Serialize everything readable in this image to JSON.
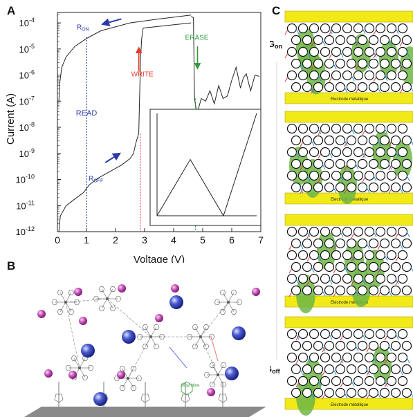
{
  "panel_labels": {
    "a": "A",
    "b": "B",
    "c": "C"
  },
  "chart_data": {
    "type": "line",
    "ylabel": "Current (A)",
    "xlabel": "Voltage (V)",
    "xlim": [
      0,
      7
    ],
    "ylim_log10": [
      -12,
      -3.6
    ],
    "x_ticks": [
      "0",
      "1",
      "2",
      "3",
      "4",
      "5",
      "6",
      "7"
    ],
    "y_ticks": [
      {
        "base": "10",
        "exp": "-4"
      },
      {
        "base": "10",
        "exp": "-5"
      },
      {
        "base": "10",
        "exp": "-6"
      },
      {
        "base": "10",
        "exp": "-7"
      },
      {
        "base": "10",
        "exp": "-8"
      },
      {
        "base": "10",
        "exp": "-9"
      },
      {
        "base": "10",
        "exp": "-10"
      },
      {
        "base": "10",
        "exp": "-11"
      },
      {
        "base": "10",
        "exp": "-12"
      }
    ],
    "annotations": {
      "r_on": {
        "main": "R",
        "sub": "ON"
      },
      "r_off": {
        "main": "R",
        "sub": "OFF"
      },
      "read": "READ",
      "write": "WRITE",
      "erase": "ERASE"
    },
    "colors": {
      "read": "#2b3aa8",
      "write": "#e53a2a",
      "erase": "#2e9a3c",
      "curve": "#222222"
    },
    "read_voltage": 1.0,
    "write_voltage": 2.85,
    "erase_voltage": 4.75,
    "off_branch": [
      [
        0.05,
        -12
      ],
      [
        0.1,
        -11.4
      ],
      [
        0.3,
        -11.0
      ],
      [
        0.6,
        -10.75
      ],
      [
        0.9,
        -10.5
      ],
      [
        1.1,
        -10.2
      ],
      [
        1.4,
        -9.95
      ],
      [
        1.8,
        -9.7
      ],
      [
        2.2,
        -9.45
      ],
      [
        2.5,
        -9.2
      ],
      [
        2.62,
        -9.0
      ],
      [
        2.7,
        -8.6
      ],
      [
        2.78,
        -8.3
      ],
      [
        2.8,
        -8.2
      ],
      [
        2.86,
        -5.4
      ],
      [
        2.9,
        -4.6
      ],
      [
        2.95,
        -4.2
      ],
      [
        4.6,
        -4.0
      ]
    ],
    "on_branch": [
      [
        4.6,
        -3.7
      ],
      [
        3.5,
        -3.85
      ],
      [
        2.5,
        -4.0
      ],
      [
        1.5,
        -4.3
      ],
      [
        1.0,
        -4.6
      ],
      [
        0.6,
        -4.9
      ],
      [
        0.3,
        -5.3
      ],
      [
        0.15,
        -5.7
      ],
      [
        0.08,
        -6.3
      ],
      [
        0.05,
        -7.0
      ]
    ],
    "noise_branch": [
      [
        4.6,
        -3.75
      ],
      [
        4.68,
        -3.8
      ],
      [
        4.72,
        -6.9
      ],
      [
        4.8,
        -7.5
      ],
      [
        4.95,
        -6.9
      ],
      [
        5.1,
        -7.0
      ],
      [
        5.25,
        -6.6
      ],
      [
        5.4,
        -7.1
      ],
      [
        5.55,
        -6.4
      ],
      [
        5.7,
        -6.9
      ],
      [
        5.85,
        -6.8
      ],
      [
        6.0,
        -6.2
      ],
      [
        6.15,
        -5.7
      ],
      [
        6.3,
        -6.5
      ],
      [
        6.4,
        -6.1
      ],
      [
        6.5,
        -5.95
      ],
      [
        6.65,
        -6.6
      ],
      [
        6.8,
        -6.0
      ],
      [
        6.95,
        -6.05
      ]
    ],
    "inset": {
      "points": [
        [
          0,
          0
        ],
        [
          1,
          0.55
        ],
        [
          2,
          0
        ],
        [
          3,
          1
        ]
      ]
    }
  },
  "panel_b": {
    "bipyridine_label": "Bipyridine"
  },
  "panel_c": {
    "electrode_label": "Electrode métallique",
    "g_on": {
      "main": "G",
      "sub": "on"
    },
    "g_off": {
      "main": "G",
      "sub": "off"
    }
  }
}
